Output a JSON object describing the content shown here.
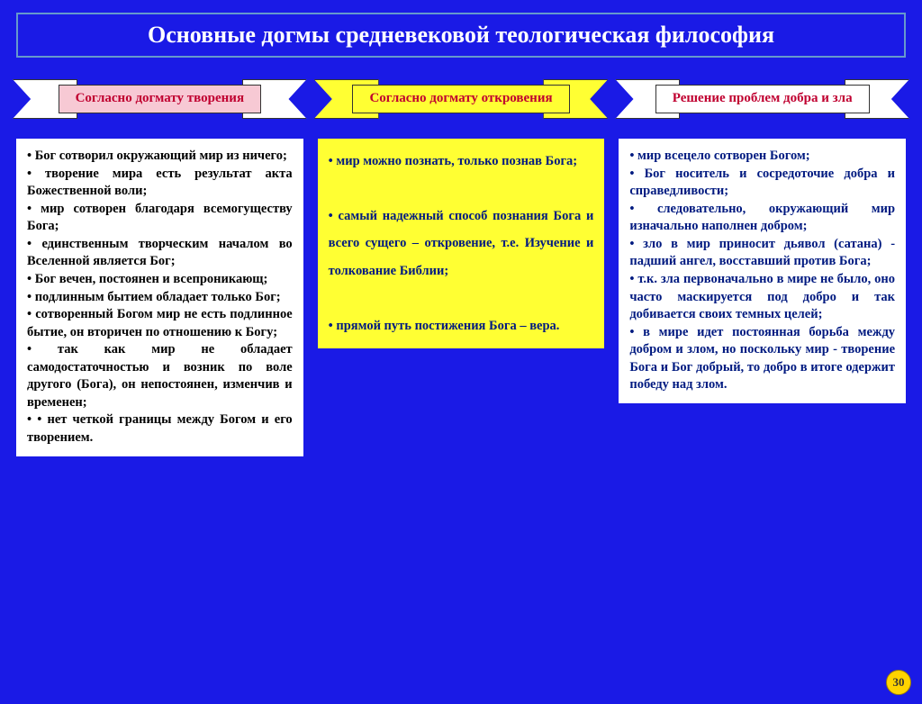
{
  "colors": {
    "page_bg": "#1a1ae6",
    "title_border": "#6699cc",
    "title_text": "#ffffff",
    "col1_banner_bg": "#f7c9d4",
    "col1_banner_text": "#c00030",
    "col1_ribbon_bg": "#ffffff",
    "col1_box_bg": "#ffffff",
    "col1_text": "#000000",
    "col2_banner_bg": "#ffff33",
    "col2_banner_text": "#c00030",
    "col2_ribbon_bg": "#ffff33",
    "col2_box_bg": "#ffff33",
    "col2_text": "#001a80",
    "col3_banner_bg": "#ffffff",
    "col3_banner_text": "#c00030",
    "col3_ribbon_bg": "#ffffff",
    "col3_box_bg": "#ffffff",
    "col3_text": "#001a80",
    "pagenum_bg": "#ffd400"
  },
  "title": "Основные догмы средневековой теологическая философия",
  "page_number": "30",
  "columns": [
    {
      "banner": "Согласно догмату творения",
      "items": [
        "Бог сотворил окружающий мир из ничего;",
        "творение мира есть результат акта Божественной воли;",
        "мир сотворен благодаря всемогуществу Бога;",
        "единственным творческим началом во Вселенной является Бог;",
        "Бог вечен, постоянен и всепроникающ;",
        "подлинным бытием обладает только Бог;",
        "сотворенный Богом мир не есть подлинное бытие, он вторичен по отношению к Богу;",
        "так как мир не обладает самодостаточностью и возник по воле другого (Бога), он непостоянен, изменчив и временен;",
        "• нет четкой границы между Богом и его творением."
      ]
    },
    {
      "banner": "Согласно догмату откровения",
      "items": [
        "мир можно познать, только познав Бога;",
        "самый надежный способ познания Бога и всего сущего – откровение, т.е. Изучение и толкование Библии;",
        "прямой путь постижения Бога – вера."
      ]
    },
    {
      "banner": "Решение проблем добра и зла",
      "items": [
        "мир всецело сотворен Богом;",
        "Бог носитель и сосредоточие добра и справедливости;",
        "следовательно, окружающий мир изначально наполнен добром;",
        "зло в мир приносит дьявол (сатана) - падший ангел, восставший против Бога;",
        "т.к. зла первоначально в мире не было, оно часто маскируется под добро и так добивается своих темных целей;",
        "в мире идет постоянная борьба между добром и злом, но поскольку мир - творение Бога и Бог добрый, то добро в итоге одержит победу над злом."
      ]
    }
  ]
}
